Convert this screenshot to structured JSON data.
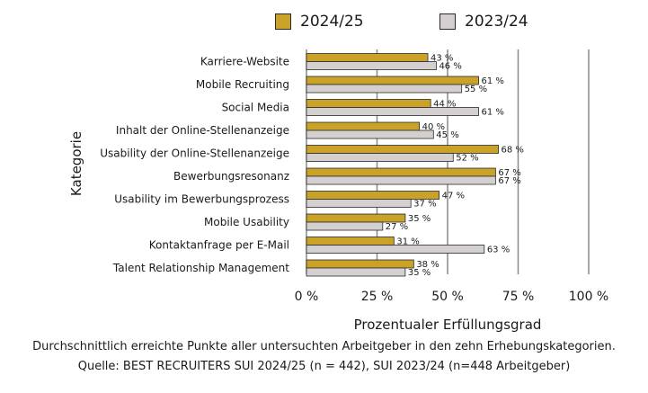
{
  "chart_data": {
    "type": "bar",
    "orientation": "horizontal",
    "categories": [
      "Karriere-Website",
      "Mobile Recruiting",
      "Social Media",
      "Inhalt der Online-Stellenanzeige",
      "Usability der Online-Stellenanzeige",
      "Bewerbungsresonanz",
      "Usability im Bewerbungsprozess",
      "Mobile Usability",
      "Kontaktanfrage per E-Mail",
      "Talent Relationship Management"
    ],
    "series": [
      {
        "name": "2024/25",
        "color": "#c9a227",
        "values": [
          43,
          61,
          44,
          40,
          68,
          67,
          47,
          35,
          31,
          38
        ],
        "labels": [
          "43 %",
          "61 %",
          "44 %",
          "40 %",
          "68 %",
          "67 %",
          "47 %",
          "35 %",
          "31 %",
          "38 %"
        ]
      },
      {
        "name": "2023/24",
        "color": "#d4d0d0",
        "values": [
          46,
          55,
          61,
          45,
          52,
          67,
          37,
          27,
          63,
          35
        ],
        "labels": [
          "46 %",
          "55 %",
          "61 %",
          "45 %",
          "52 %",
          "67 %",
          "37 %",
          "27 %",
          "63 %",
          "35 %"
        ]
      }
    ],
    "xlim": [
      0,
      100
    ],
    "xticks": [
      "0 %",
      "25 %",
      "50 %",
      "75 %",
      "100 %"
    ],
    "xlabel": "Prozentualer Erfüllungsgrad",
    "ylabel": "Kategorie",
    "grid": "vertical",
    "legend": "top-center"
  },
  "caption": {
    "line1": "Durchschnittlich erreichte Punkte aller untersuchten Arbeitgeber in den zehn Erhebungskategorien.",
    "line2": "Quelle: BEST RECRUITERS SUI 2024/25 (n = 442), SUI 2023/24 (n=448 Arbeitgeber)"
  }
}
